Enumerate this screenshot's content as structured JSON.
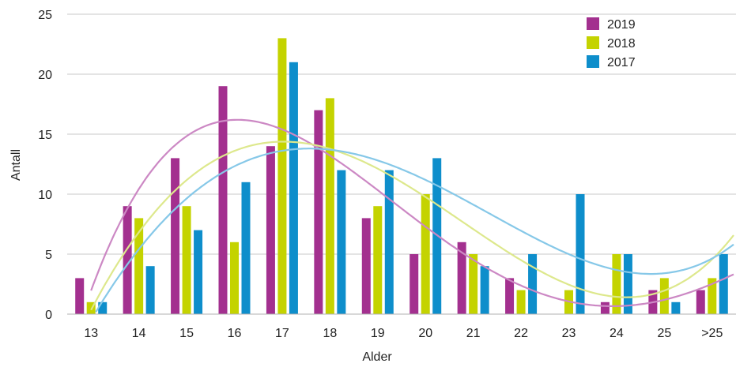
{
  "chart_data": {
    "type": "bar",
    "xlabel": "Alder",
    "ylabel": "Antall",
    "ylim": [
      0,
      25
    ],
    "yticks": [
      0,
      5,
      10,
      15,
      20,
      25
    ],
    "grid": "horizontal",
    "legend_position": "top-right",
    "categories": [
      "13",
      "14",
      "15",
      "16",
      "17",
      "18",
      "19",
      "20",
      "21",
      "22",
      "23",
      "24",
      "25",
      ">25"
    ],
    "series": [
      {
        "name": "2019",
        "color": "#a3308f",
        "trend_color": "#cc88c4",
        "values": [
          3,
          9,
          13,
          19,
          14,
          17,
          8,
          5,
          6,
          3,
          0,
          1,
          2,
          2
        ]
      },
      {
        "name": "2018",
        "color": "#c4d300",
        "trend_color": "#dde88c",
        "values": [
          1,
          8,
          9,
          6,
          23,
          18,
          9,
          10,
          5,
          2,
          2,
          5,
          3,
          3
        ]
      },
      {
        "name": "2017",
        "color": "#0e8ecb",
        "trend_color": "#86c8e8",
        "values": [
          1,
          4,
          7,
          11,
          21,
          12,
          12,
          13,
          4,
          5,
          10,
          5,
          1,
          5
        ]
      }
    ],
    "trendline": "polynomial"
  }
}
